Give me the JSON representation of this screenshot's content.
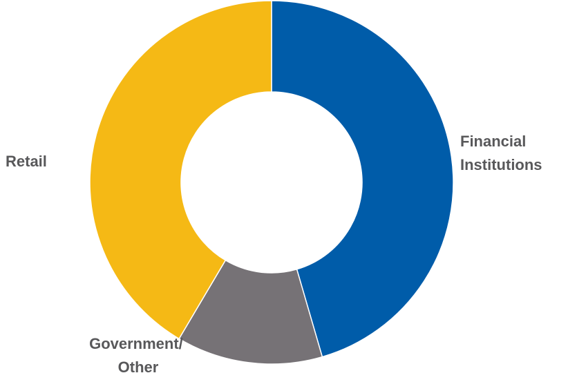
{
  "chart_data": {
    "type": "pie",
    "donut": true,
    "title": "",
    "slices": [
      {
        "label": "Financial Institutions",
        "value": 45.5,
        "color": "#005ca9"
      },
      {
        "label": "Government/ Other",
        "value": 13.0,
        "color": "#767276"
      },
      {
        "label": "Retail",
        "value": 41.5,
        "color": "#f5b915"
      }
    ],
    "start": "12 o'clock",
    "direction": "clockwise",
    "legend": "none"
  }
}
